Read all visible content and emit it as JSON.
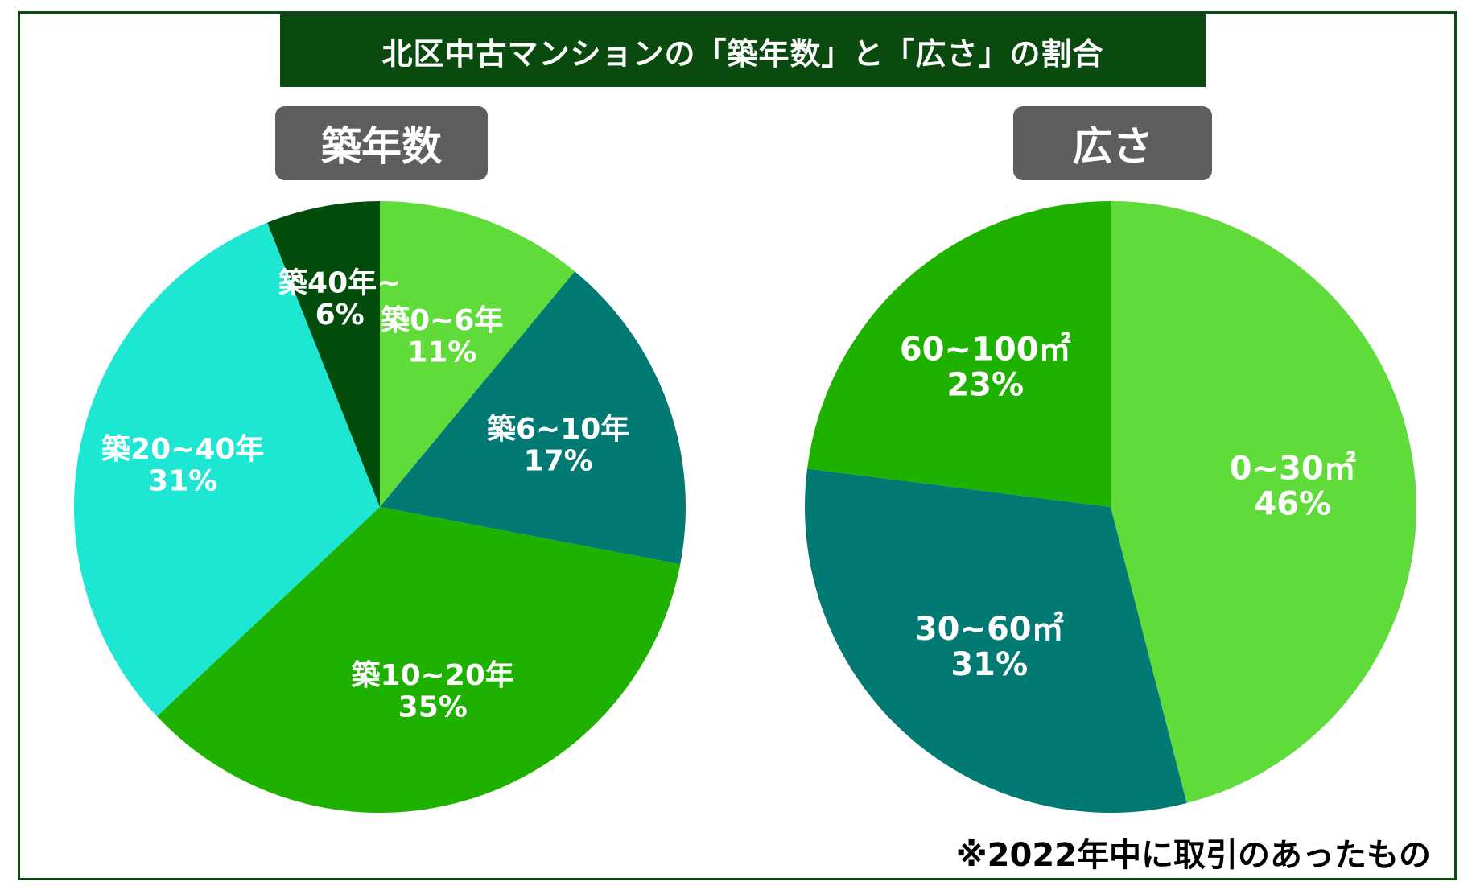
{
  "title": "北区中古マンションの「築年数」と「広さ」の割合",
  "footnote": "※2022年中に取引のあったもの",
  "chart_data": [
    {
      "type": "pie",
      "title": "築年数",
      "slices": [
        {
          "label": "築0~6年",
          "percent_label": "11%",
          "value": 11,
          "color": "#5fdb3a"
        },
        {
          "label": "築6~10年",
          "percent_label": "17%",
          "value": 17,
          "color": "#007a73"
        },
        {
          "label": "築10~20年",
          "percent_label": "35%",
          "value": 35,
          "color": "#1eb100"
        },
        {
          "label": "築20~40年",
          "percent_label": "31%",
          "value": 31,
          "color": "#1de6d2"
        },
        {
          "label": "築40年~",
          "percent_label": "6%",
          "value": 6,
          "color": "#034d0c"
        }
      ]
    },
    {
      "type": "pie",
      "title": "広さ",
      "slices": [
        {
          "label": "0~30㎡",
          "percent_label": "46%",
          "value": 46,
          "color": "#5fdb3a"
        },
        {
          "label": "30~60㎡",
          "percent_label": "31%",
          "value": 31,
          "color": "#007a73"
        },
        {
          "label": "60~100㎡",
          "percent_label": "23%",
          "value": 23,
          "color": "#1eb100"
        }
      ]
    }
  ]
}
